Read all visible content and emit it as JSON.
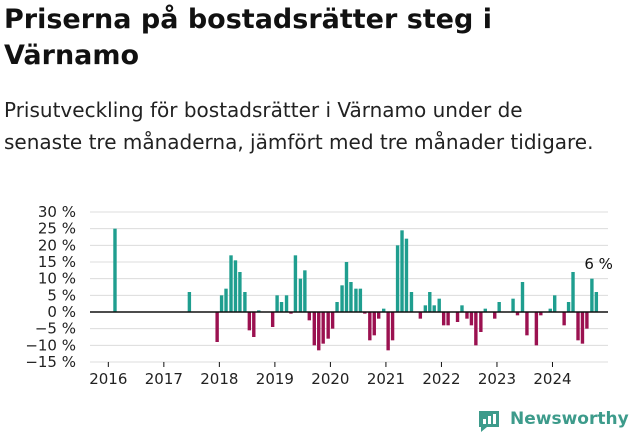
{
  "title": "Priserna på bostadsrätter steg i Värnamo",
  "subtitle": "Prisutveckling för bostadsrätter i Värnamo under de senaste tre månaderna, jämfört med tre månader tidigare.",
  "brand": "Newsworthy",
  "colors": {
    "positive": "#1f9e8f",
    "negative": "#9b1150",
    "grid": "#dcdcdc",
    "zero": "#111111",
    "brand": "#3d9b8b"
  },
  "chart_data": {
    "type": "bar",
    "title": "Priserna på bostadsrätter steg i Värnamo",
    "ylabel": "",
    "xlabel": "",
    "ylim": [
      -15,
      30
    ],
    "y_ticks": [
      -15,
      -10,
      -5,
      0,
      5,
      10,
      15,
      20,
      25,
      30
    ],
    "y_tick_labels": [
      "−15 %",
      "−10 %",
      "−5 %",
      "0 %",
      "5 %",
      "10 %",
      "15 %",
      "20 %",
      "25 %",
      "30 %"
    ],
    "x_ticks": [
      "2016",
      "2017",
      "2018",
      "2019",
      "2020",
      "2021",
      "2022",
      "2023",
      "2024"
    ],
    "x_range": [
      2015.67,
      2025.0
    ],
    "grid": true,
    "annotation": {
      "x": 2024.79,
      "label": "6 %"
    },
    "series": [
      {
        "x": [
          2016.12,
          2017.46,
          2017.96,
          2018.04,
          2018.12,
          2018.21,
          2018.29,
          2018.37,
          2018.46,
          2018.54,
          2018.62,
          2018.71,
          2018.96,
          2019.04,
          2019.12,
          2019.21,
          2019.29,
          2019.37,
          2019.46,
          2019.54,
          2019.62,
          2019.71,
          2019.79,
          2019.87,
          2019.96,
          2020.04,
          2020.12,
          2020.21,
          2020.29,
          2020.37,
          2020.46,
          2020.54,
          2020.62,
          2020.71,
          2020.79,
          2020.87,
          2020.96,
          2021.04,
          2021.12,
          2021.21,
          2021.29,
          2021.37,
          2021.46,
          2021.62,
          2021.71,
          2021.79,
          2021.87,
          2021.96,
          2022.04,
          2022.12,
          2022.29,
          2022.37,
          2022.46,
          2022.54,
          2022.62,
          2022.71,
          2022.79,
          2022.96,
          2023.04,
          2023.29,
          2023.37,
          2023.46,
          2023.54,
          2023.71,
          2023.79,
          2023.96,
          2024.04,
          2024.21,
          2024.29,
          2024.37,
          2024.46,
          2024.54,
          2024.62,
          2024.71,
          2024.79
        ],
        "values": [
          25,
          6,
          -9,
          5,
          7,
          17,
          15.5,
          12,
          6,
          -5.5,
          -7.5,
          0.5,
          -4.5,
          5,
          3,
          5,
          -0.5,
          17,
          10,
          12.5,
          -2.5,
          -10,
          -11.5,
          -9.5,
          -8,
          -5,
          3,
          8,
          15,
          9,
          7,
          7,
          -0.5,
          -8.5,
          -7,
          -2,
          1,
          -11.5,
          -8.5,
          20,
          24.5,
          22,
          6,
          -2,
          2,
          6,
          2,
          4,
          -4,
          -4,
          -3,
          2,
          -2,
          -4,
          -10,
          -6,
          1,
          -2,
          3,
          4,
          -1,
          9,
          -7,
          -10,
          -1,
          1,
          5,
          -4,
          3,
          12,
          -8.5,
          -9.5,
          -5,
          10,
          6
        ]
      }
    ]
  }
}
